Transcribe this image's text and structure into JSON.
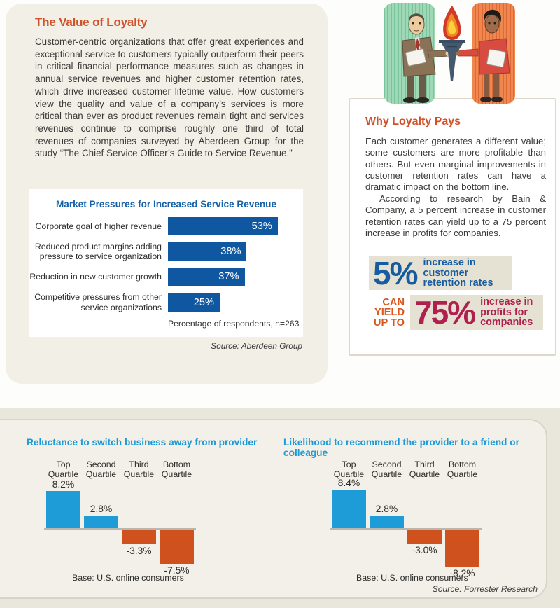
{
  "colors": {
    "accent_orange": "#d0512a",
    "dark_bar_blue": "#0f57a0",
    "hchart_title_blue": "#1660a6",
    "vchart_title_blue": "#1c99d6",
    "positive_bar_blue": "#1e9cd8",
    "negative_bar_orange": "#cf521e",
    "stat_blue": "#185c9f",
    "stat_crimson": "#b01f4e",
    "yield_orange": "#d9571f",
    "cream_panel": "#f2efe7",
    "beige_stat_box": "#e5e2d3"
  },
  "left_panel": {
    "title": "The Value of Loyalty",
    "body": "Customer-centric organizations that offer great experiences and exceptional service to customers typically outperform their peers in critical financial performance measures such as changes in annual service revenues and higher customer retention rates, which drive increased customer lifetime value. How customers view the quality and value of a company’s services is more critical than ever as product revenues remain tight and services revenues continue to comprise roughly one third of total revenues of companies surveyed by Aberdeen Group for the study “The Chief Service Officer’s Guide to Service Revenue.”",
    "source": "Source: Aberdeen Group"
  },
  "right_panel": {
    "illustration": "torch-handoff-illustration",
    "title": "Why Loyalty Pays",
    "p1": "Each customer generates a different value; some customers are more profitable than others. But even marginal improvements in customer retention rates can have a dramatic impact on the bottom line.",
    "p2": "According to research by Bain & Company, a 5 percent increase in customer retention rates can yield up to a 75 percent increase in profits for companies.",
    "stat5_value": "5%",
    "stat5_label": "increase in\ncustomer\nretention rates",
    "yield_text": "CAN\nYIELD\nUP TO",
    "stat75_value": "75%",
    "stat75_label": "increase in\nprofits for\ncompanies"
  },
  "bottom_section": {
    "source": "Source: Forrester Research"
  },
  "chart_data": [
    {
      "type": "bar",
      "orientation": "horizontal",
      "title": "Market Pressures for Increased Service Revenue",
      "categories": [
        "Corporate goal of higher revenue",
        "Reduced product margins adding pressure to service organization",
        "Reduction in new customer growth",
        "Competitive pressures from other service organizations"
      ],
      "values": [
        53,
        38,
        37,
        25
      ],
      "value_labels": [
        "53%",
        "38%",
        "37%",
        "25%"
      ],
      "xlabel": "Percentage of respondents, n=263",
      "xlim": [
        0,
        60
      ],
      "bar_color": "#0f57a0",
      "source": "Source: Aberdeen Group"
    },
    {
      "type": "bar",
      "orientation": "vertical",
      "title": "Reluctance to switch business away from provider",
      "categories": [
        "Top Quartile",
        "Second Quartile",
        "Third Quartile",
        "Bottom Quartile"
      ],
      "values": [
        8.2,
        2.8,
        -3.3,
        -7.5
      ],
      "value_labels": [
        "8.2%",
        "2.8%",
        "-3.3%",
        "-7.5%"
      ],
      "base_note": "Base: U.S. online consumers",
      "ylim": [
        -9,
        9
      ],
      "positive_color": "#1e9cd8",
      "negative_color": "#cf521e"
    },
    {
      "type": "bar",
      "orientation": "vertical",
      "title": "Likelihood to recommend the provider to a friend or colleague",
      "categories": [
        "Top Quartile",
        "Second Quartile",
        "Third Quartile",
        "Bottom Quartile"
      ],
      "values": [
        8.4,
        2.8,
        -3.0,
        -8.2
      ],
      "value_labels": [
        "8.4%",
        "2.8%",
        "-3.0%",
        "-8.2%"
      ],
      "base_note": "Base: U.S. online consumers",
      "ylim": [
        -9,
        9
      ],
      "positive_color": "#1e9cd8",
      "negative_color": "#cf521e",
      "source": "Source: Forrester Research"
    }
  ]
}
